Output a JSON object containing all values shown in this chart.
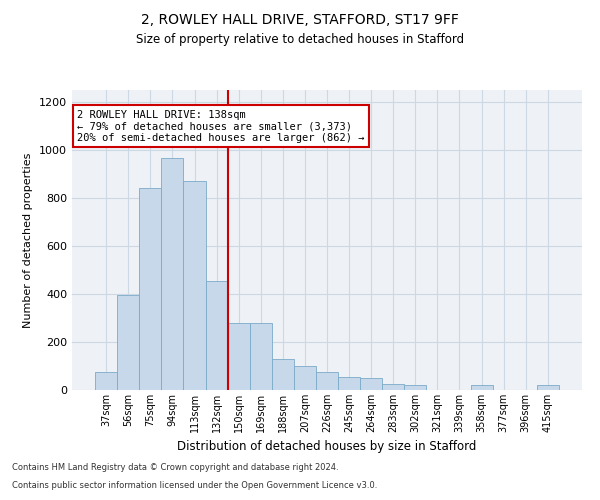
{
  "title1": "2, ROWLEY HALL DRIVE, STAFFORD, ST17 9FF",
  "title2": "Size of property relative to detached houses in Stafford",
  "xlabel": "Distribution of detached houses by size in Stafford",
  "ylabel": "Number of detached properties",
  "categories": [
    "37sqm",
    "56sqm",
    "75sqm",
    "94sqm",
    "113sqm",
    "132sqm",
    "150sqm",
    "169sqm",
    "188sqm",
    "207sqm",
    "226sqm",
    "245sqm",
    "264sqm",
    "283sqm",
    "302sqm",
    "321sqm",
    "339sqm",
    "358sqm",
    "377sqm",
    "396sqm",
    "415sqm"
  ],
  "values": [
    75,
    395,
    840,
    965,
    870,
    455,
    280,
    280,
    130,
    100,
    75,
    55,
    50,
    25,
    20,
    0,
    0,
    20,
    0,
    0,
    20
  ],
  "bar_color": "#c8d8eb",
  "bar_edge_color": "#7aaac8",
  "vline_x_index": 5,
  "vline_color": "#cc0000",
  "annotation_text": "2 ROWLEY HALL DRIVE: 138sqm\n← 79% of detached houses are smaller (3,373)\n20% of semi-detached houses are larger (862) →",
  "annotation_box_color": "#ffffff",
  "annotation_box_edge_color": "#cc0000",
  "footnote1": "Contains HM Land Registry data © Crown copyright and database right 2024.",
  "footnote2": "Contains public sector information licensed under the Open Government Licence v3.0.",
  "ylim": [
    0,
    1250
  ],
  "yticks": [
    0,
    200,
    400,
    600,
    800,
    1000,
    1200
  ],
  "grid_color": "#ccd8e4",
  "bg_color": "#eef2f7"
}
